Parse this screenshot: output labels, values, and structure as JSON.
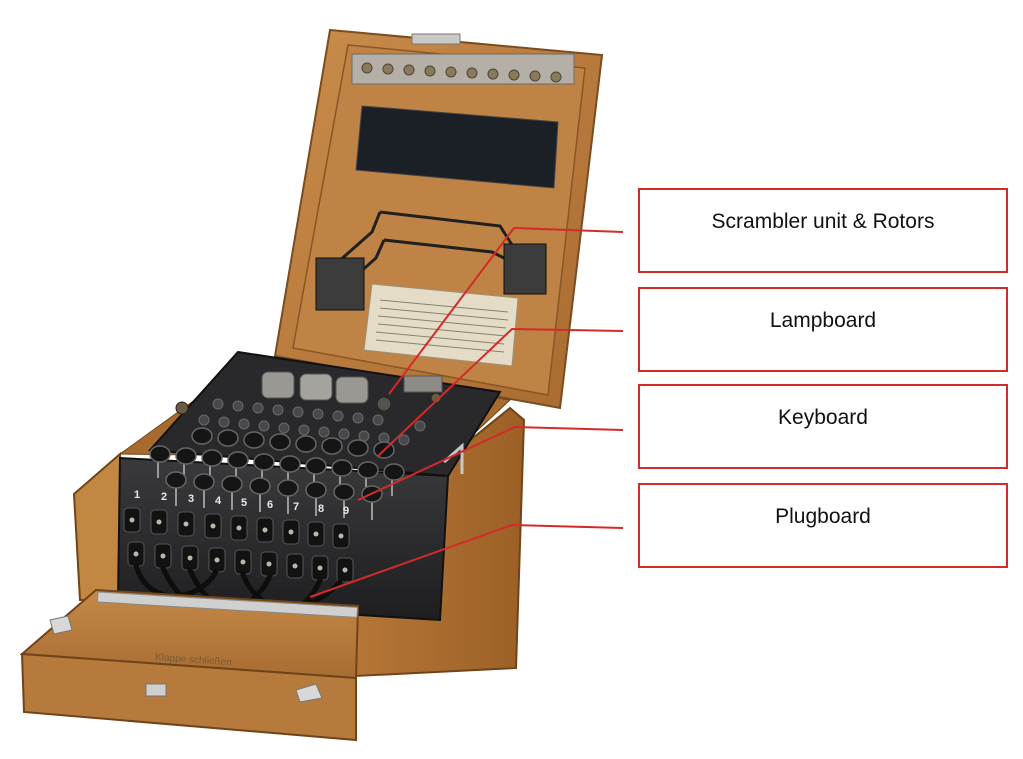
{
  "labels": {
    "scrambler": "Scrambler unit & Rotors",
    "lampboard": "Lampboard",
    "keyboard": "Keyboard",
    "plugboard": "Plugboard"
  },
  "machine": {
    "plugboard_numbers": [
      "1",
      "2",
      "3",
      "4",
      "5",
      "6",
      "7",
      "8",
      "9"
    ],
    "front_cover_text": "Klappe schließen"
  },
  "colors": {
    "callout_line": "#d42a2a",
    "box_border": "#d42a2a",
    "wood": "#b87a3e",
    "machine_body": "#2a2a2c"
  }
}
